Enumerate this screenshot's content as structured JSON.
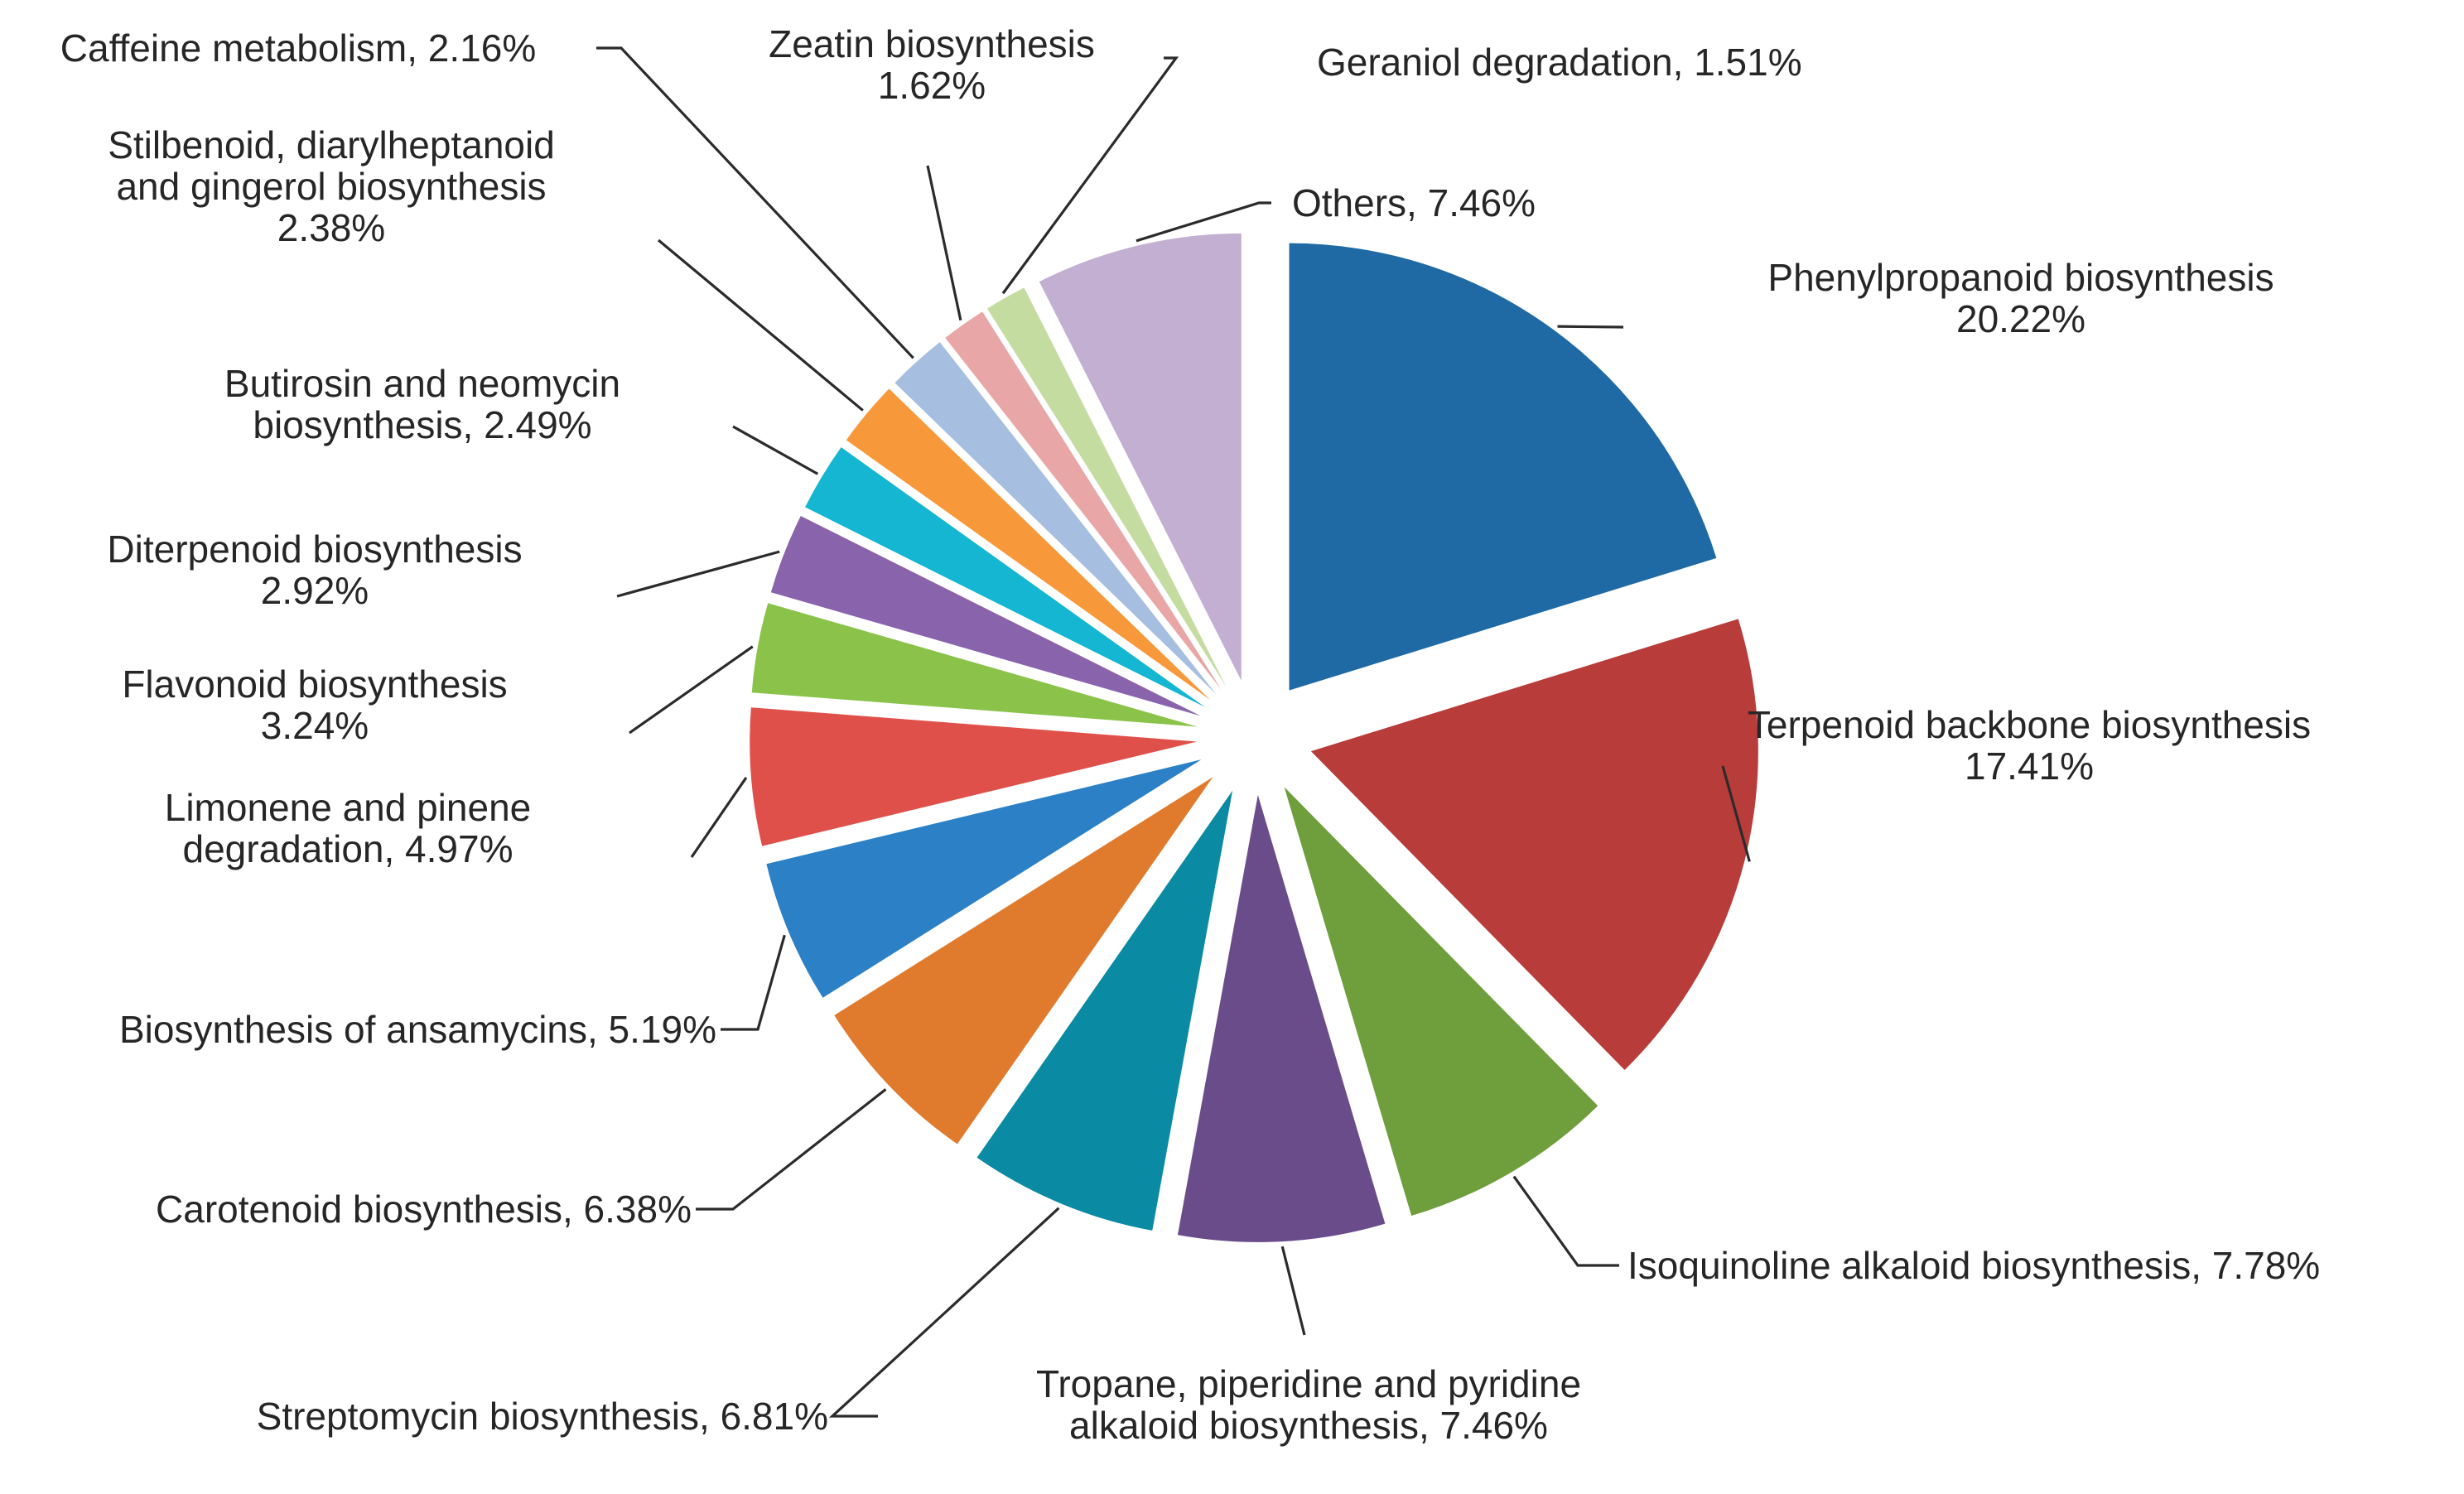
{
  "chart_data": {
    "type": "pie",
    "slices": [
      {
        "label": "Phenylpropanoid biosynthesis",
        "value_label": "20.22%",
        "value": 20.22,
        "color": "#1f6aa5"
      },
      {
        "label": "Terpenoid backbone biosynthesis",
        "value_label": "17.41%",
        "value": 17.41,
        "color": "#b83c3a"
      },
      {
        "label": "Isoquinoline alkaloid biosynthesis",
        "value_label": "7.78%",
        "value": 7.78,
        "color": "#6f9e3c"
      },
      {
        "label": "Tropane, piperidine and pyridine alkaloid biosynthesis",
        "value_label": "7.46%",
        "value": 7.46,
        "color": "#6b4c8b"
      },
      {
        "label": "Streptomycin biosynthesis",
        "value_label": "6.81%",
        "value": 6.81,
        "color": "#0b8aa3"
      },
      {
        "label": "Carotenoid biosynthesis",
        "value_label": "6.38%",
        "value": 6.38,
        "color": "#e07b2e"
      },
      {
        "label": "Biosynthesis of ansamycins",
        "value_label": "5.19%",
        "value": 5.19,
        "color": "#2b80c6"
      },
      {
        "label": "Limonene and pinene degradation",
        "value_label": "4.97%",
        "value": 4.97,
        "color": "#e0504b"
      },
      {
        "label": "Flavonoid biosynthesis",
        "value_label": "3.24%",
        "value": 3.24,
        "color": "#8bc34a"
      },
      {
        "label": "Diterpenoid biosynthesis",
        "value_label": "2.92%",
        "value": 2.92,
        "color": "#8a63ad"
      },
      {
        "label": "Butirosin and neomycin biosynthesis",
        "value_label": "2.49%",
        "value": 2.49,
        "color": "#15b6d1"
      },
      {
        "label": "Stilbenoid, diarylheptanoid and gingerol biosynthesis",
        "value_label": "2.38%",
        "value": 2.38,
        "color": "#f7993a"
      },
      {
        "label": "Caffeine metabolism",
        "value_label": "2.16%",
        "value": 2.16,
        "color": "#a6bfe0"
      },
      {
        "label": "Zeatin biosynthesis",
        "value_label": "1.62%",
        "value": 1.62,
        "color": "#e8a7a6"
      },
      {
        "label": "Geraniol degradation",
        "value_label": "1.51%",
        "value": 1.51,
        "color": "#c4dca0"
      },
      {
        "label": "Others",
        "value_label": "7.46%",
        "value": 7.46,
        "color": "#c3afd1"
      }
    ],
    "label_lines": [
      [
        "Phenylpropanoid biosynthesis",
        "20.22%"
      ],
      [
        "Terpenoid backbone biosynthesis",
        "17.41%"
      ],
      [
        "Isoquinoline alkaloid biosynthesis, 7.78%"
      ],
      [
        "Tropane, piperidine and pyridine",
        "alkaloid biosynthesis, 7.46%"
      ],
      [
        "Streptomycin biosynthesis, 6.81%"
      ],
      [
        "Carotenoid biosynthesis, 6.38%"
      ],
      [
        "Biosynthesis of ansamycins, 5.19%"
      ],
      [
        "Limonene and pinene",
        "degradation, 4.97%"
      ],
      [
        "Flavonoid biosynthesis",
        "3.24%"
      ],
      [
        "Diterpenoid biosynthesis",
        "2.92%"
      ],
      [
        "Butirosin and neomycin",
        "biosynthesis, 2.49%"
      ],
      [
        "Stilbenoid, diarylheptanoid",
        "and gingerol biosynthesis",
        "2.38%"
      ],
      [
        "Caffeine metabolism, 2.16%"
      ],
      [
        "Zeatin biosynthesis",
        "1.62%"
      ],
      [
        "Geraniol degradation, 1.51%"
      ],
      [
        "Others, 7.46%"
      ]
    ],
    "start_angle": "12 o'clock",
    "direction": "clockwise",
    "exploded": true,
    "legend": "none"
  }
}
